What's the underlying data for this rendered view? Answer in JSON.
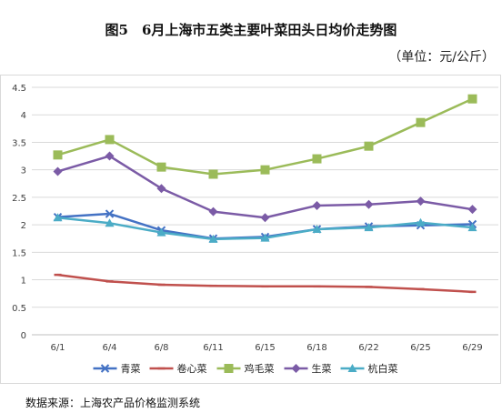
{
  "header": {
    "title": "图5　6月上海市五类主要叶菜田头日均价走势图",
    "unit": "（单位：元/公斤）"
  },
  "footer": {
    "source": "数据来源：上海农产品价格监测系统"
  },
  "chart_data": {
    "type": "line",
    "title": "",
    "xlabel": "",
    "ylabel": "",
    "ylim": [
      0,
      4.5
    ],
    "yticks": [
      "0",
      "0.5",
      "1",
      "1.5",
      "2",
      "2.5",
      "3",
      "3.5",
      "4",
      "4.5"
    ],
    "categories": [
      "6/1",
      "6/4",
      "6/8",
      "6/11",
      "6/15",
      "6/18",
      "6/22",
      "6/25",
      "6/29"
    ],
    "grid": true,
    "legend_position": "bottom",
    "series": [
      {
        "name": "青菜",
        "color": "#4472C4",
        "marker": "x",
        "values": [
          2.14,
          2.2,
          1.9,
          1.75,
          1.78,
          1.92,
          1.97,
          1.99,
          2.01
        ]
      },
      {
        "name": "卷心菜",
        "color": "#C0504D",
        "marker": "dash",
        "values": [
          1.09,
          0.97,
          0.91,
          0.89,
          0.88,
          0.88,
          0.87,
          0.83,
          0.78
        ]
      },
      {
        "name": "鸡毛菜",
        "color": "#9BBB59",
        "marker": "square",
        "values": [
          3.27,
          3.55,
          3.05,
          2.92,
          3.0,
          3.2,
          3.43,
          3.86,
          4.29
        ]
      },
      {
        "name": "生菜",
        "color": "#7B5BA6",
        "marker": "diamond",
        "values": [
          2.97,
          3.25,
          2.66,
          2.24,
          2.13,
          2.35,
          2.37,
          2.43,
          2.28
        ]
      },
      {
        "name": "杭白菜",
        "color": "#4BACC6",
        "marker": "triangle",
        "values": [
          2.13,
          2.03,
          1.86,
          1.74,
          1.76,
          1.92,
          1.95,
          2.04,
          1.95
        ]
      }
    ]
  }
}
